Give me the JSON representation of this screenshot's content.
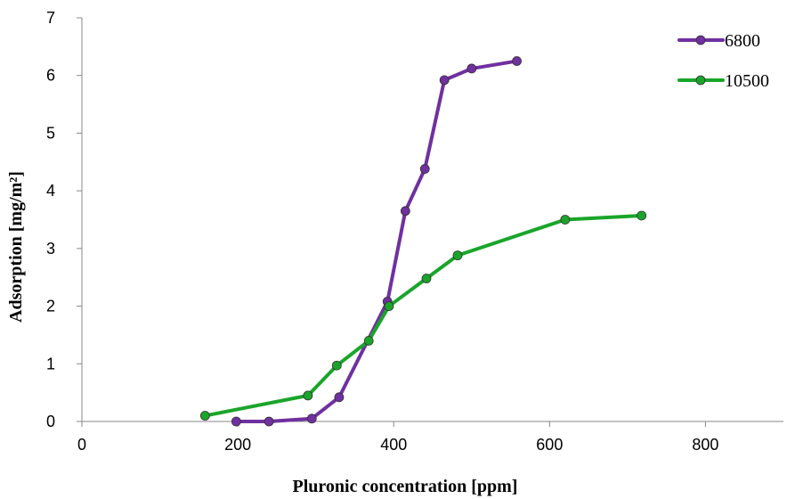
{
  "chart_data": {
    "type": "line",
    "title": "",
    "xlabel": "Pluronic concentration [ppm]",
    "ylabel": "Adsorption [mg/m²]",
    "xlim": [
      0,
      900
    ],
    "ylim": [
      0,
      7
    ],
    "xticks": [
      0,
      200,
      400,
      600,
      800
    ],
    "yticks": [
      0,
      1,
      2,
      3,
      4,
      5,
      6,
      7
    ],
    "grid": false,
    "legend_position": "top-right",
    "series": [
      {
        "name": "6800",
        "color": "#7030A0",
        "x": [
          198,
          240,
          295,
          330,
          392,
          415,
          440,
          465,
          500,
          558
        ],
        "y": [
          0.0,
          0.0,
          0.05,
          0.42,
          2.08,
          3.65,
          4.38,
          5.92,
          6.12,
          6.25
        ]
      },
      {
        "name": "10500",
        "color": "#1AA52A",
        "x": [
          158,
          290,
          327,
          368,
          394,
          442,
          482,
          620,
          718
        ],
        "y": [
          0.1,
          0.45,
          0.97,
          1.4,
          2.0,
          2.48,
          2.88,
          3.5,
          3.57
        ]
      }
    ]
  }
}
